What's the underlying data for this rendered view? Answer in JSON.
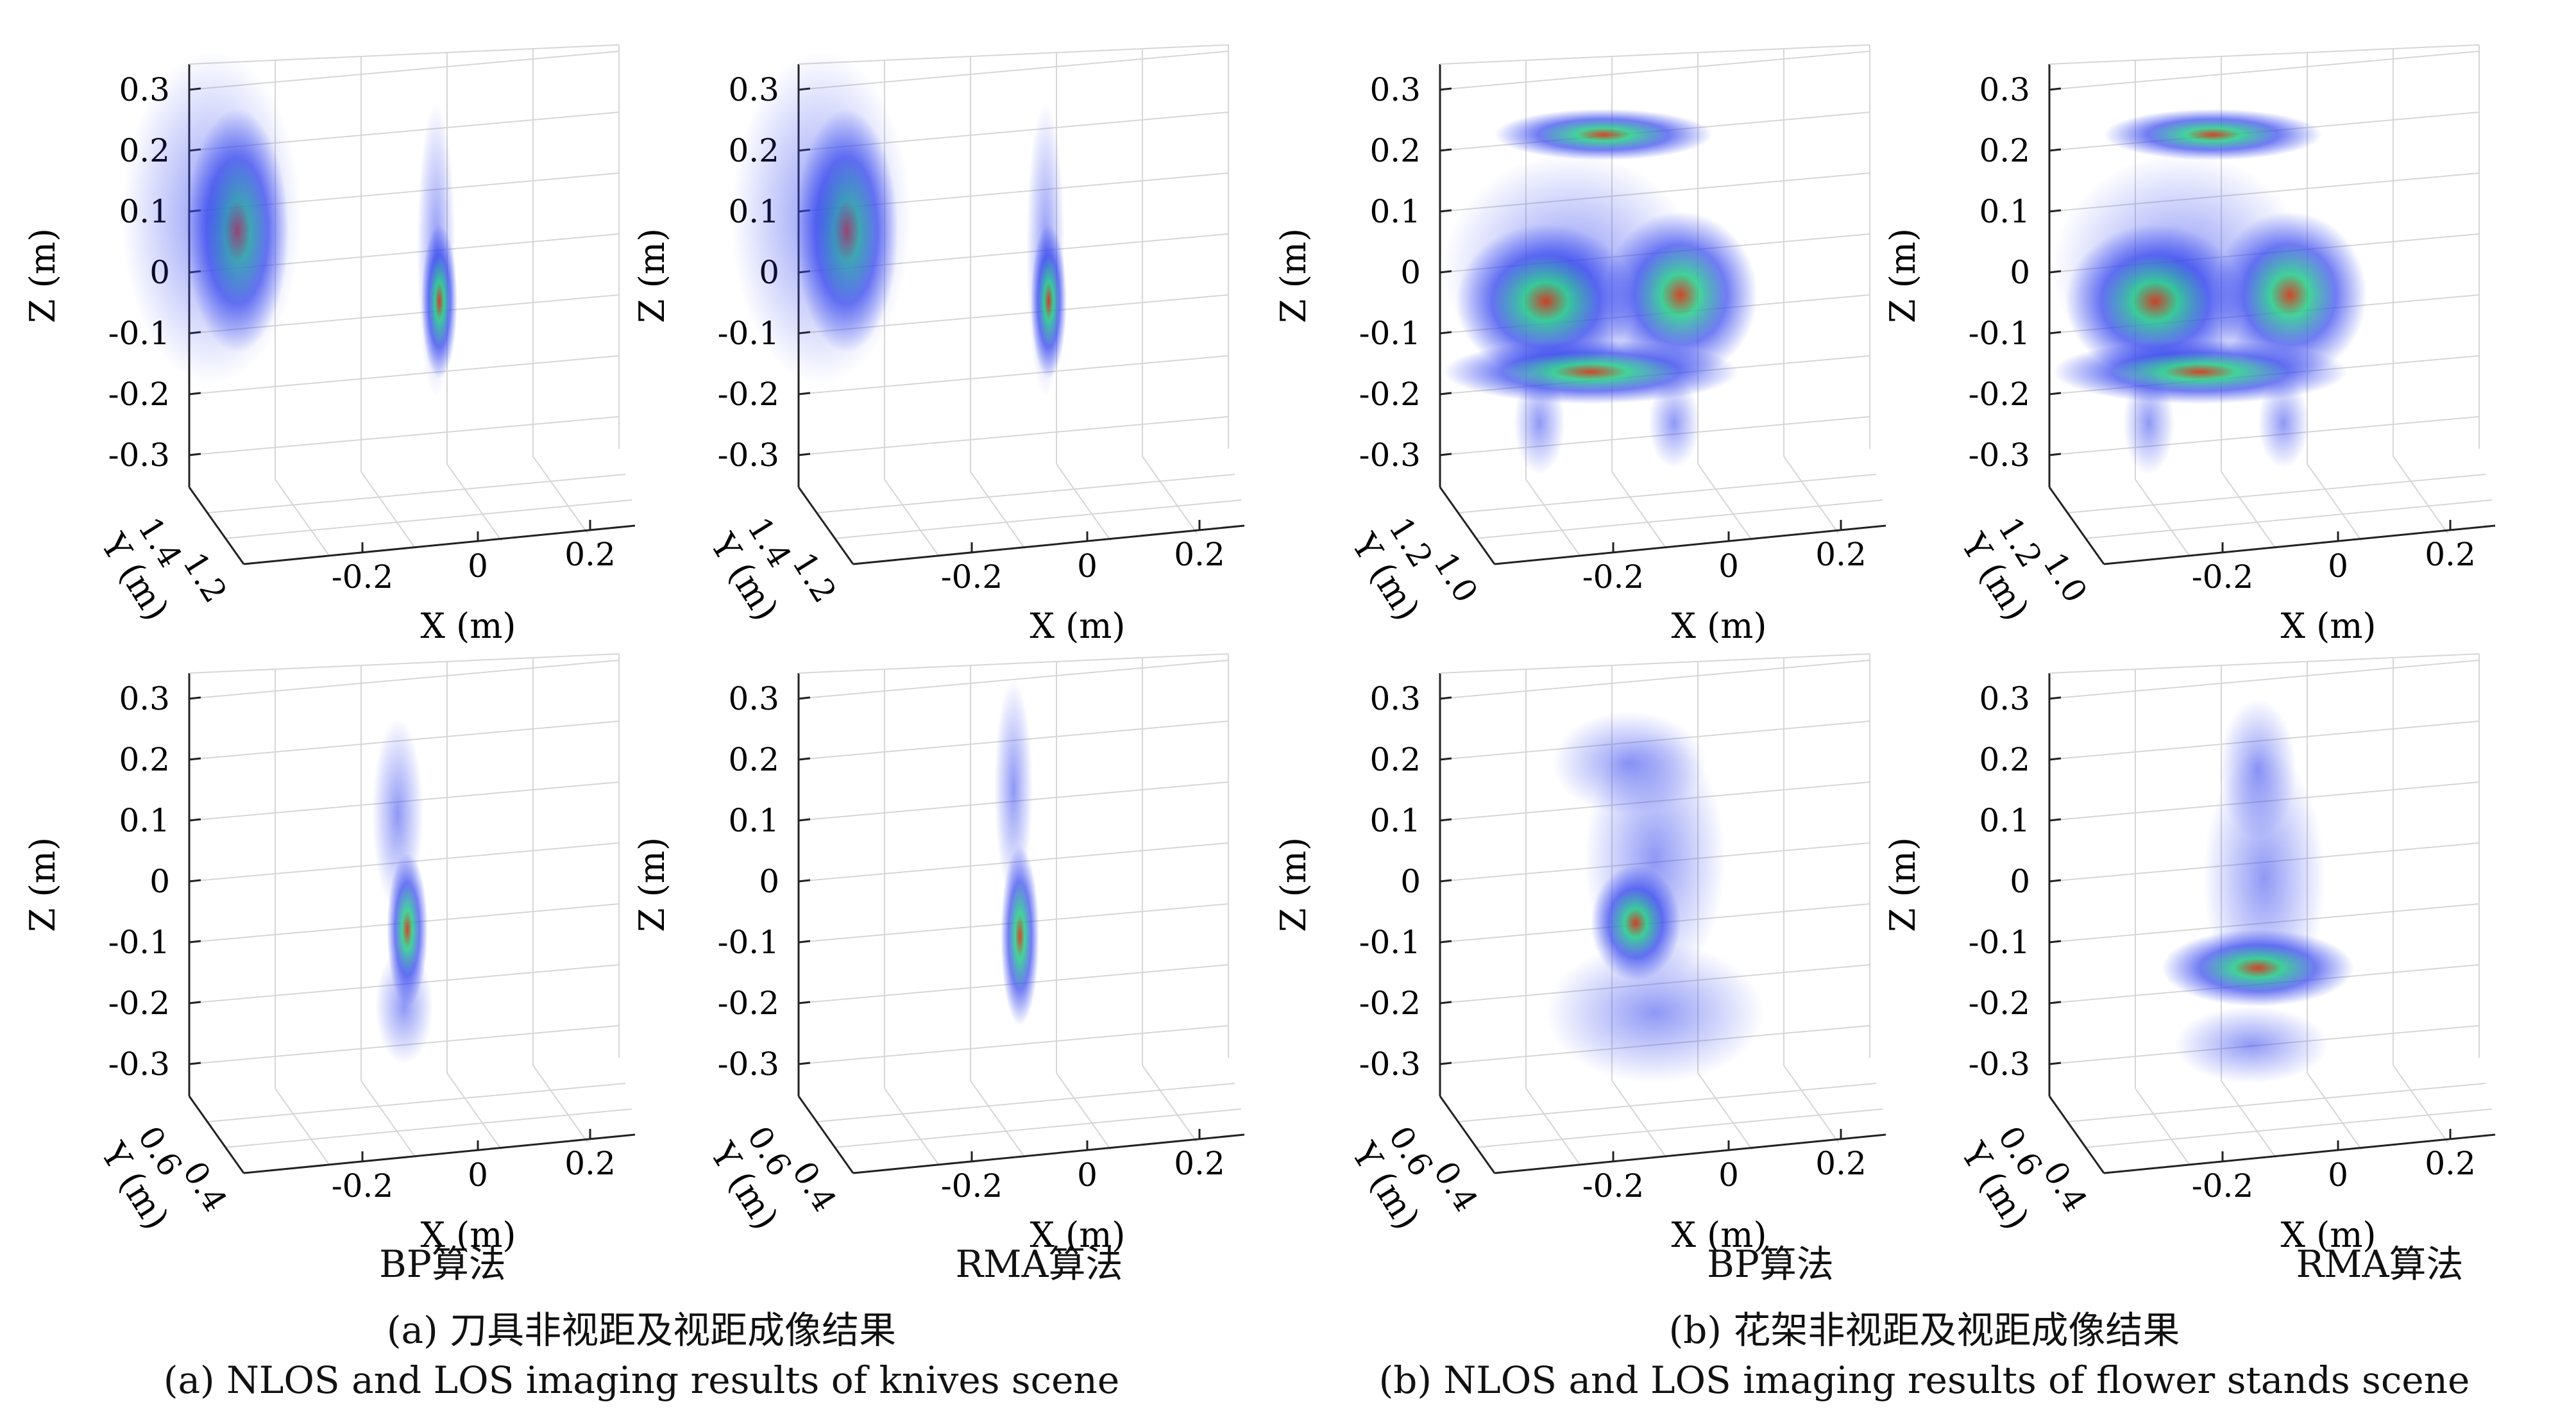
{
  "panels": [
    {
      "group": "knives",
      "view": "NLOS",
      "algorithm": "BP",
      "z_ticks": [
        "0.3",
        "0.2",
        "0.1",
        "0",
        "-0.1",
        "-0.2",
        "-0.3"
      ],
      "x_ticks": [
        "-0.2",
        "0",
        "0.2"
      ],
      "y_ticks": [
        "1.4",
        "1.2"
      ],
      "x_label": "X (m)",
      "y_label": "Y (m)",
      "z_label": "Z (m)"
    },
    {
      "group": "knives",
      "view": "NLOS",
      "algorithm": "RMA",
      "z_ticks": [
        "0.3",
        "0.2",
        "0.1",
        "0",
        "-0.1",
        "-0.2",
        "-0.3"
      ],
      "x_ticks": [
        "-0.2",
        "0",
        "0.2"
      ],
      "y_ticks": [
        "1.4",
        "1.2"
      ],
      "x_label": "X (m)",
      "y_label": "Y (m)",
      "z_label": "Z (m)"
    },
    {
      "group": "flower_stands",
      "view": "NLOS",
      "algorithm": "BP",
      "z_ticks": [
        "0.3",
        "0.2",
        "0.1",
        "0",
        "-0.1",
        "-0.2",
        "-0.3"
      ],
      "x_ticks": [
        "-0.2",
        "0",
        "0.2"
      ],
      "y_ticks": [
        "1.2",
        "1.0"
      ],
      "x_label": "X (m)",
      "y_label": "Y (m)",
      "z_label": "Z (m)"
    },
    {
      "group": "flower_stands",
      "view": "NLOS",
      "algorithm": "RMA",
      "z_ticks": [
        "0.3",
        "0.2",
        "0.1",
        "0",
        "-0.1",
        "-0.2",
        "-0.3"
      ],
      "x_ticks": [
        "-0.2",
        "0",
        "0.2"
      ],
      "y_ticks": [
        "1.2",
        "1.0"
      ],
      "x_label": "X (m)",
      "y_label": "Y (m)",
      "z_label": "Z (m)"
    },
    {
      "group": "knives",
      "view": "LOS",
      "algorithm": "BP",
      "z_ticks": [
        "0.3",
        "0.2",
        "0.1",
        "0",
        "-0.1",
        "-0.2",
        "-0.3"
      ],
      "x_ticks": [
        "-0.2",
        "0",
        "0.2"
      ],
      "y_ticks": [
        "0.6",
        "0.4"
      ],
      "x_label": "X (m)",
      "y_label": "Y (m)",
      "z_label": "Z (m)"
    },
    {
      "group": "knives",
      "view": "LOS",
      "algorithm": "RMA",
      "z_ticks": [
        "0.3",
        "0.2",
        "0.1",
        "0",
        "-0.1",
        "-0.2",
        "-0.3"
      ],
      "x_ticks": [
        "-0.2",
        "0",
        "0.2"
      ],
      "y_ticks": [
        "0.6",
        "0.4"
      ],
      "x_label": "X (m)",
      "y_label": "Y (m)",
      "z_label": "Z (m)"
    },
    {
      "group": "flower_stands",
      "view": "LOS",
      "algorithm": "BP",
      "z_ticks": [
        "0.3",
        "0.2",
        "0.1",
        "0",
        "-0.1",
        "-0.2",
        "-0.3"
      ],
      "x_ticks": [
        "-0.2",
        "0",
        "0.2"
      ],
      "y_ticks": [
        "0.6",
        "0.4"
      ],
      "x_label": "X (m)",
      "y_label": "Y (m)",
      "z_label": "Z (m)"
    },
    {
      "group": "flower_stands",
      "view": "LOS",
      "algorithm": "RMA",
      "z_ticks": [
        "0.3",
        "0.2",
        "0.1",
        "0",
        "-0.1",
        "-0.2",
        "-0.3"
      ],
      "x_ticks": [
        "-0.2",
        "0",
        "0.2"
      ],
      "y_ticks": [
        "0.6",
        "0.4"
      ],
      "x_label": "X (m)",
      "y_label": "Y (m)",
      "z_label": "Z (m)"
    }
  ],
  "algorithm_labels": [
    "BP算法",
    "RMA算法",
    "BP算法",
    "RMA算法"
  ],
  "captions": {
    "a_cn": "(a) 刀具非视距及视距成像结果",
    "a_en": "(a) NLOS and LOS imaging results of knives scene",
    "b_cn": "(b) 花架非视距及视距成像结果",
    "b_en": "(b) NLOS and LOS imaging results of flower stands scene"
  },
  "colors": {
    "axis": "#222222",
    "grid": "#d6d6d6",
    "blob_low": "#3344ee",
    "blob_mid": "#22cc88",
    "blob_high": "#cc3311"
  }
}
